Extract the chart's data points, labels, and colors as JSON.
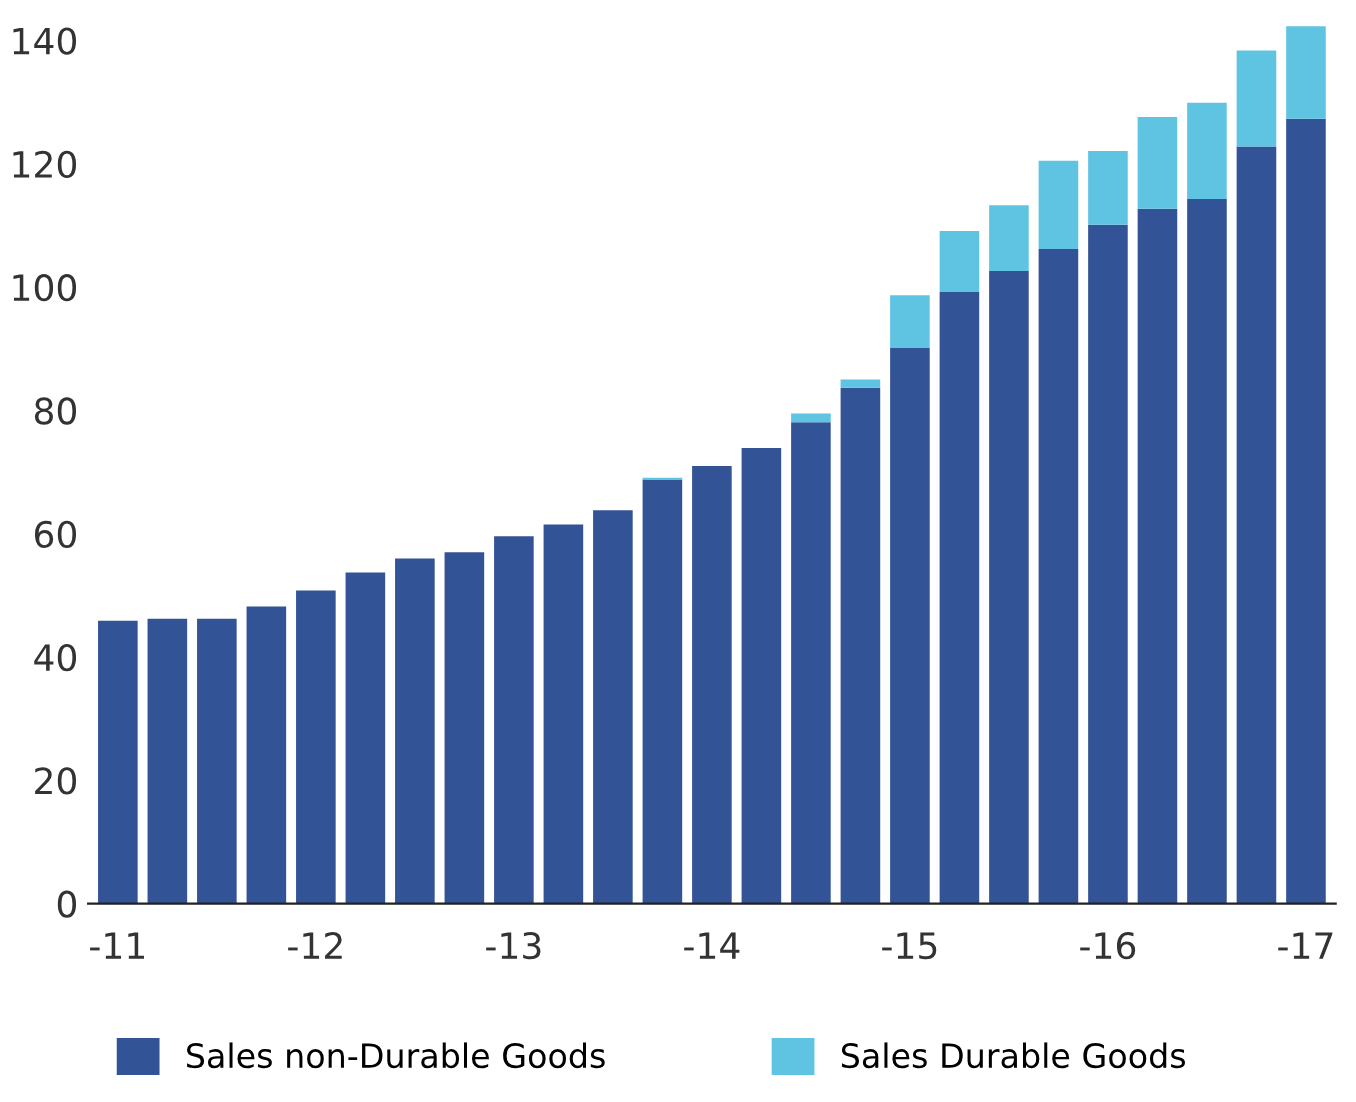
{
  "chart_data": {
    "type": "bar",
    "stacked": true,
    "categories": [
      "-11",
      null,
      null,
      null,
      "-12",
      null,
      null,
      null,
      "-13",
      null,
      null,
      null,
      "-14",
      null,
      null,
      null,
      "-15",
      null,
      null,
      null,
      "-16",
      null,
      null,
      null,
      "-17"
    ],
    "series": [
      {
        "name": "Sales non-Durable Goods",
        "color": "#335397",
        "values": [
          45.9,
          46.2,
          46.2,
          48.2,
          50.8,
          53.7,
          56,
          57,
          59.6,
          61.5,
          63.8,
          68.8,
          71,
          73.9,
          78.1,
          83.7,
          90.2,
          99.3,
          102.6,
          106.2,
          110.1,
          112.7,
          114.3,
          122.8,
          127.3
        ]
      },
      {
        "name": "Sales Durable Goods",
        "color": "#5fc4e2",
        "values": [
          0,
          0,
          0,
          0,
          0,
          0,
          0,
          0,
          0,
          0,
          0,
          0.3,
          0,
          0,
          1.4,
          1.3,
          8.5,
          9.8,
          10.7,
          14.3,
          12,
          14.9,
          15.6,
          15.6,
          15
        ]
      }
    ],
    "ylim": [
      0,
      143
    ],
    "yticks": [
      0,
      20,
      40,
      60,
      80,
      100,
      120,
      140
    ],
    "grid": false,
    "legend": "bottom"
  }
}
